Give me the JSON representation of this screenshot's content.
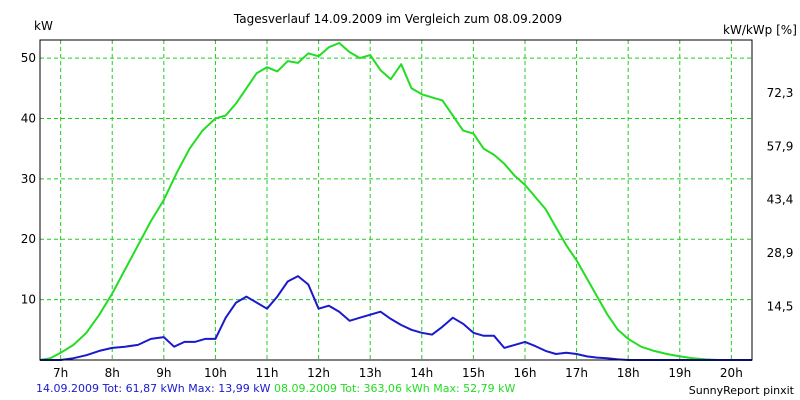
{
  "chart_data": {
    "type": "line",
    "title": "Tagesverlauf 14.09.2009 im Vergleich zum 08.09.2009",
    "ylabel_left": "kW",
    "ylabel_right": "kW/kWp [%]",
    "xlim": [
      6.6,
      20.4
    ],
    "ylim": [
      0,
      53
    ],
    "x_ticks": [
      7,
      8,
      9,
      10,
      11,
      12,
      13,
      14,
      15,
      16,
      17,
      18,
      19,
      20
    ],
    "x_tick_labels": [
      "7h",
      "8h",
      "9h",
      "10h",
      "11h",
      "12h",
      "13h",
      "14h",
      "15h",
      "16h",
      "17h",
      "18h",
      "19h",
      "20h"
    ],
    "y_ticks_left": [
      10,
      20,
      30,
      40,
      50
    ],
    "y_ticks_right": [
      {
        "y": 8.86,
        "label": "14,5"
      },
      {
        "y": 17.7,
        "label": "28,9"
      },
      {
        "y": 26.55,
        "label": "43,4"
      },
      {
        "y": 35.4,
        "label": "57,9"
      },
      {
        "y": 44.25,
        "label": "72,3"
      }
    ],
    "grid": true,
    "colors": {
      "background": "#ffffff",
      "grid": "#22cc22",
      "axis": "#000000"
    },
    "series": [
      {
        "name": "08.09.2009",
        "color": "#22dd22",
        "x": [
          6.6,
          6.8,
          7.0,
          7.25,
          7.5,
          7.75,
          8.0,
          8.25,
          8.5,
          8.75,
          9.0,
          9.25,
          9.5,
          9.75,
          10.0,
          10.2,
          10.4,
          10.6,
          10.8,
          11.0,
          11.2,
          11.4,
          11.6,
          11.8,
          12.0,
          12.2,
          12.4,
          12.6,
          12.8,
          13.0,
          13.2,
          13.4,
          13.6,
          13.8,
          14.0,
          14.2,
          14.4,
          14.6,
          14.8,
          15.0,
          15.2,
          15.4,
          15.6,
          15.8,
          16.0,
          16.2,
          16.4,
          16.6,
          16.8,
          17.0,
          17.2,
          17.4,
          17.6,
          17.8,
          18.0,
          18.25,
          18.5,
          18.75,
          19.0,
          19.25,
          19.5,
          19.75,
          20.0,
          20.4
        ],
        "values": [
          0.0,
          0.3,
          1.2,
          2.5,
          4.5,
          7.5,
          11.0,
          15.0,
          19.0,
          23.0,
          26.5,
          31.0,
          35.0,
          38.0,
          40.0,
          40.5,
          42.5,
          45.0,
          47.5,
          48.5,
          47.8,
          49.5,
          49.2,
          50.8,
          50.3,
          51.8,
          52.5,
          51.0,
          50.0,
          50.5,
          48.0,
          46.5,
          49.0,
          45.0,
          44.0,
          43.5,
          43.0,
          40.5,
          38.0,
          37.5,
          35.0,
          34.0,
          32.5,
          30.5,
          29.0,
          27.0,
          25.0,
          22.0,
          19.0,
          16.5,
          13.5,
          10.5,
          7.5,
          5.0,
          3.5,
          2.2,
          1.5,
          1.0,
          0.6,
          0.3,
          0.1,
          0.0,
          0.0,
          0.0
        ]
      },
      {
        "name": "14.09.2009",
        "color": "#1a1acc",
        "x": [
          6.6,
          7.0,
          7.25,
          7.5,
          7.75,
          8.0,
          8.25,
          8.5,
          8.75,
          9.0,
          9.2,
          9.4,
          9.6,
          9.8,
          10.0,
          10.2,
          10.4,
          10.6,
          10.8,
          11.0,
          11.2,
          11.4,
          11.6,
          11.8,
          12.0,
          12.2,
          12.4,
          12.6,
          12.8,
          13.0,
          13.2,
          13.4,
          13.6,
          13.8,
          14.0,
          14.2,
          14.4,
          14.6,
          14.8,
          15.0,
          15.2,
          15.4,
          15.6,
          15.8,
          16.0,
          16.2,
          16.4,
          16.6,
          16.8,
          17.0,
          17.2,
          17.4,
          17.6,
          17.8,
          18.0,
          18.25,
          18.5,
          18.75,
          19.0,
          19.25,
          19.5,
          19.75,
          20.0,
          20.4
        ],
        "values": [
          0.0,
          0.0,
          0.3,
          0.8,
          1.5,
          2.0,
          2.2,
          2.5,
          3.5,
          3.8,
          2.2,
          3.0,
          3.0,
          3.5,
          3.5,
          7.0,
          9.5,
          10.5,
          9.5,
          8.5,
          10.5,
          13.0,
          13.9,
          12.5,
          8.5,
          9.0,
          8.0,
          6.5,
          7.0,
          7.5,
          8.0,
          6.8,
          5.8,
          5.0,
          4.5,
          4.2,
          5.5,
          7.0,
          6.0,
          4.5,
          4.0,
          4.0,
          2.0,
          2.5,
          3.0,
          2.3,
          1.5,
          1.0,
          1.2,
          1.0,
          0.6,
          0.4,
          0.3,
          0.1,
          0.0,
          0.0,
          0.0,
          0.0,
          0.0,
          0.0,
          0.0,
          0.0,
          0.0,
          0.0
        ]
      }
    ]
  },
  "footer": {
    "blue_text": "14.09.2009 Tot: 61,87 kWh Max: 13,99 kW",
    "green_text": "08.09.2009 Tot: 363,06 kWh Max: 52,79 kW",
    "credit": "SunnyReport pinxit"
  }
}
